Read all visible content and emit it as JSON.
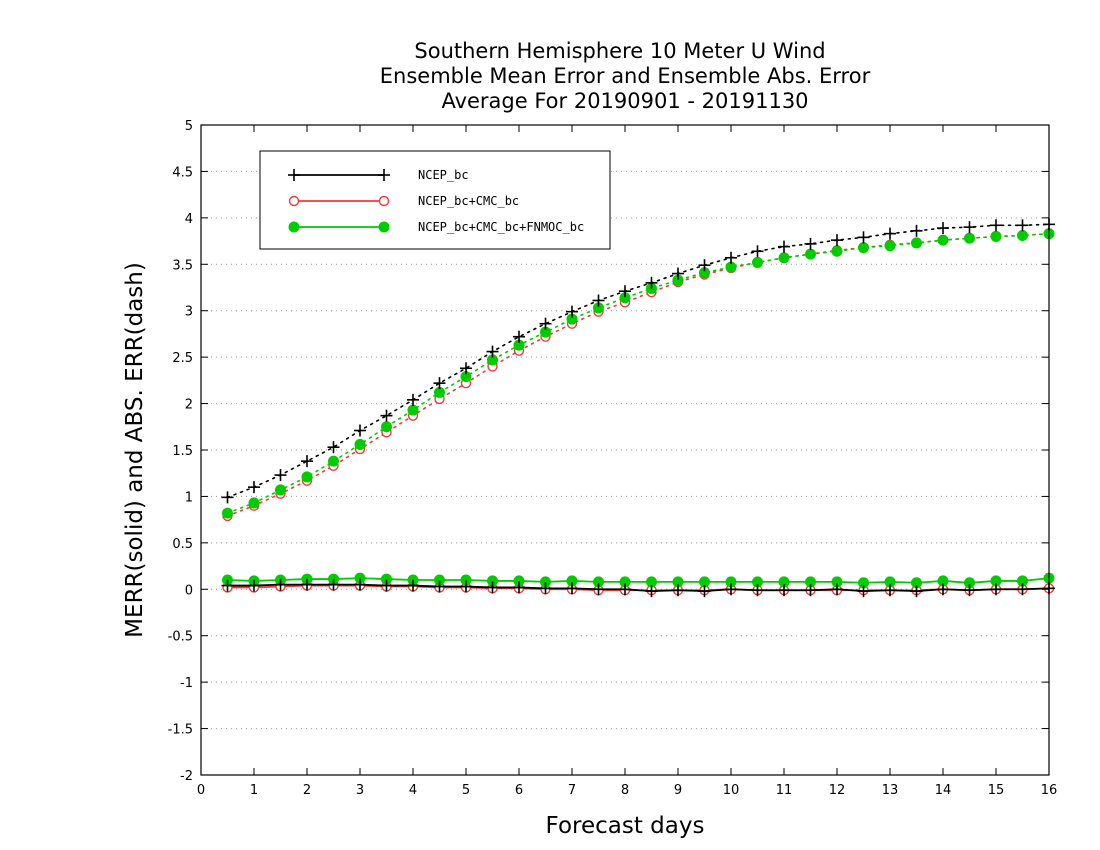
{
  "chart_data": {
    "type": "line",
    "title_lines": [
      "Southern Hemisphere 10 Meter U Wind",
      "Ensemble Mean Error and Ensemble Abs. Error",
      "Average For 20190901 - 20191130"
    ],
    "xlabel": "Forecast days",
    "ylabel": "MERR(solid) and ABS. ERR(dash)",
    "xlim": [
      0,
      16
    ],
    "ylim": [
      -2,
      5
    ],
    "xticks": [
      "0",
      "1",
      "2",
      "3",
      "4",
      "5",
      "6",
      "7",
      "8",
      "9",
      "10",
      "11",
      "12",
      "13",
      "14",
      "15",
      "16"
    ],
    "yticks": [
      "5",
      "4.5",
      "4",
      "3.5",
      "3",
      "2.5",
      "2",
      "1.5",
      "1",
      "0.5",
      "0",
      "-0.5",
      "-1",
      "-1.5",
      "-2"
    ],
    "grid": "horizontal dotted",
    "legend_position": "top-left",
    "x": [
      0.5,
      1,
      1.5,
      2,
      2.5,
      3,
      3.5,
      4,
      4.5,
      5,
      5.5,
      6,
      6.5,
      7,
      7.5,
      8,
      8.5,
      9,
      9.5,
      10,
      10.5,
      11,
      11.5,
      12,
      12.5,
      13,
      13.5,
      14,
      14.5,
      15,
      15.5,
      16
    ],
    "series": [
      {
        "name": "NCEP_bc",
        "color": "#000000",
        "marker": "plus",
        "abs_err": [
          0.99,
          1.1,
          1.23,
          1.38,
          1.53,
          1.71,
          1.87,
          2.04,
          2.22,
          2.38,
          2.56,
          2.72,
          2.86,
          2.99,
          3.11,
          3.21,
          3.3,
          3.4,
          3.49,
          3.57,
          3.64,
          3.69,
          3.72,
          3.76,
          3.79,
          3.83,
          3.86,
          3.89,
          3.9,
          3.92,
          3.92,
          3.93
        ],
        "mean_err": [
          0.04,
          0.04,
          0.05,
          0.05,
          0.05,
          0.05,
          0.04,
          0.04,
          0.03,
          0.03,
          0.02,
          0.02,
          0.01,
          0.01,
          0.0,
          0.0,
          -0.02,
          -0.01,
          -0.02,
          0.0,
          -0.01,
          -0.01,
          -0.01,
          0.0,
          -0.02,
          -0.01,
          -0.02,
          0.0,
          -0.01,
          0.0,
          0.0,
          0.01
        ]
      },
      {
        "name": "NCEP_bc+CMC_bc",
        "color": "#ee3b3b",
        "marker": "open-circle",
        "abs_err": [
          0.79,
          0.9,
          1.03,
          1.17,
          1.33,
          1.51,
          1.69,
          1.87,
          2.05,
          2.22,
          2.4,
          2.57,
          2.72,
          2.86,
          2.99,
          3.09,
          3.2,
          3.31,
          3.39,
          3.46,
          3.52,
          3.57,
          3.61,
          3.65,
          3.68,
          3.71,
          3.73,
          3.76,
          3.78,
          3.8,
          3.81,
          3.83
        ],
        "mean_err": [
          0.02,
          0.02,
          0.03,
          0.04,
          0.04,
          0.04,
          0.03,
          0.03,
          0.02,
          0.02,
          0.01,
          0.01,
          0.0,
          0.0,
          -0.01,
          -0.01,
          -0.01,
          -0.01,
          -0.01,
          0.0,
          -0.01,
          -0.01,
          -0.01,
          -0.01,
          -0.01,
          -0.01,
          -0.01,
          0.0,
          -0.01,
          0.0,
          0.0,
          0.01
        ]
      },
      {
        "name": "NCEP_bc+CMC_bc+FNMOC_bc",
        "color": "#00cc00",
        "marker": "filled-circle",
        "abs_err": [
          0.82,
          0.93,
          1.07,
          1.21,
          1.38,
          1.56,
          1.75,
          1.93,
          2.12,
          2.29,
          2.47,
          2.63,
          2.77,
          2.91,
          3.03,
          3.14,
          3.24,
          3.33,
          3.41,
          3.47,
          3.52,
          3.57,
          3.61,
          3.64,
          3.68,
          3.7,
          3.73,
          3.76,
          3.78,
          3.8,
          3.81,
          3.83
        ],
        "mean_err": [
          0.1,
          0.09,
          0.1,
          0.11,
          0.11,
          0.12,
          0.11,
          0.1,
          0.1,
          0.1,
          0.09,
          0.09,
          0.08,
          0.09,
          0.08,
          0.08,
          0.08,
          0.08,
          0.08,
          0.08,
          0.08,
          0.08,
          0.08,
          0.08,
          0.07,
          0.08,
          0.07,
          0.09,
          0.07,
          0.09,
          0.09,
          0.12
        ]
      }
    ]
  }
}
